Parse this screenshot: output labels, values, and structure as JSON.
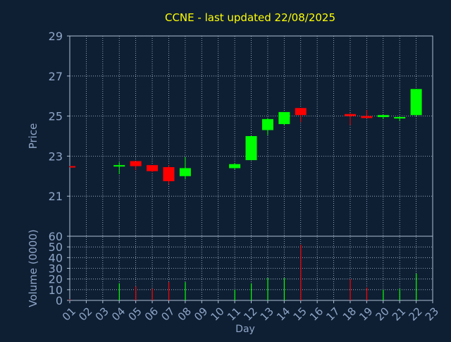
{
  "title": "CCNE - last updated 22/08/2025",
  "colors": {
    "background": "#0f1f33",
    "title": "#ffff00",
    "axis_text": "#8ea6c8",
    "frame": "#aebfd6",
    "grid": "#aebfd6",
    "up": "#00ff00",
    "down": "#ff0000"
  },
  "chart_data": [
    {
      "type": "candlestick",
      "title": "CCNE - last updated 22/08/2025",
      "ylabel": "Price",
      "xlabel": "Day",
      "ylim": [
        19,
        29
      ],
      "yticks": [
        21,
        23,
        25,
        27,
        29
      ],
      "grid": true,
      "candles": [
        {
          "day": "01",
          "open": 22.5,
          "high": 22.5,
          "low": 22.45,
          "close": 22.45,
          "dir": "down"
        },
        {
          "day": "04",
          "open": 22.5,
          "high": 22.7,
          "low": 22.1,
          "close": 22.55,
          "dir": "up"
        },
        {
          "day": "05",
          "open": 22.75,
          "high": 22.75,
          "low": 22.3,
          "close": 22.5,
          "dir": "down"
        },
        {
          "day": "06",
          "open": 22.55,
          "high": 22.55,
          "low": 22.2,
          "close": 22.25,
          "dir": "down"
        },
        {
          "day": "07",
          "open": 22.45,
          "high": 22.55,
          "low": 21.6,
          "close": 21.75,
          "dir": "down"
        },
        {
          "day": "08",
          "open": 22.0,
          "high": 22.95,
          "low": 21.85,
          "close": 22.4,
          "dir": "up"
        },
        {
          "day": "11",
          "open": 22.4,
          "high": 22.65,
          "low": 22.35,
          "close": 22.6,
          "dir": "up"
        },
        {
          "day": "12",
          "open": 22.8,
          "high": 24.0,
          "low": 22.8,
          "close": 24.0,
          "dir": "up"
        },
        {
          "day": "13",
          "open": 24.3,
          "high": 24.9,
          "low": 24.05,
          "close": 24.85,
          "dir": "up"
        },
        {
          "day": "14",
          "open": 24.6,
          "high": 25.2,
          "low": 24.55,
          "close": 25.2,
          "dir": "up"
        },
        {
          "day": "15",
          "open": 25.4,
          "high": 25.4,
          "low": 24.7,
          "close": 25.05,
          "dir": "down"
        },
        {
          "day": "18",
          "open": 25.1,
          "high": 25.15,
          "low": 24.55,
          "close": 25.0,
          "dir": "down"
        },
        {
          "day": "19",
          "open": 25.0,
          "high": 25.3,
          "low": 24.9,
          "close": 24.9,
          "dir": "down"
        },
        {
          "day": "20",
          "open": 24.95,
          "high": 25.05,
          "low": 24.85,
          "close": 25.05,
          "dir": "up"
        },
        {
          "day": "21",
          "open": 24.9,
          "high": 25.0,
          "low": 24.75,
          "close": 24.95,
          "dir": "up"
        },
        {
          "day": "22",
          "open": 25.05,
          "high": 26.35,
          "low": 25.0,
          "close": 26.35,
          "dir": "up"
        }
      ]
    },
    {
      "type": "bar",
      "ylabel": "Volume (0000)",
      "xlabel": "Day",
      "ylim": [
        0,
        60
      ],
      "yticks": [
        0,
        10,
        20,
        30,
        40,
        50,
        60
      ],
      "grid": true,
      "categories": [
        "01",
        "02",
        "03",
        "04",
        "05",
        "06",
        "07",
        "08",
        "09",
        "10",
        "11",
        "12",
        "13",
        "14",
        "15",
        "16",
        "17",
        "18",
        "19",
        "20",
        "21",
        "22",
        "23"
      ],
      "bars": [
        {
          "day": "01",
          "value": 1,
          "dir": "down"
        },
        {
          "day": "04",
          "value": 16,
          "dir": "up"
        },
        {
          "day": "05",
          "value": 13,
          "dir": "down"
        },
        {
          "day": "06",
          "value": 11,
          "dir": "down"
        },
        {
          "day": "07",
          "value": 17,
          "dir": "down"
        },
        {
          "day": "08",
          "value": 17,
          "dir": "up"
        },
        {
          "day": "11",
          "value": 10,
          "dir": "up"
        },
        {
          "day": "12",
          "value": 16,
          "dir": "up"
        },
        {
          "day": "13",
          "value": 21,
          "dir": "up"
        },
        {
          "day": "14",
          "value": 21,
          "dir": "up"
        },
        {
          "day": "15",
          "value": 52,
          "dir": "down"
        },
        {
          "day": "18",
          "value": 20,
          "dir": "down"
        },
        {
          "day": "19",
          "value": 12,
          "dir": "down"
        },
        {
          "day": "20",
          "value": 10,
          "dir": "up"
        },
        {
          "day": "21",
          "value": 11,
          "dir": "up"
        },
        {
          "day": "22",
          "value": 25,
          "dir": "up"
        }
      ]
    }
  ]
}
